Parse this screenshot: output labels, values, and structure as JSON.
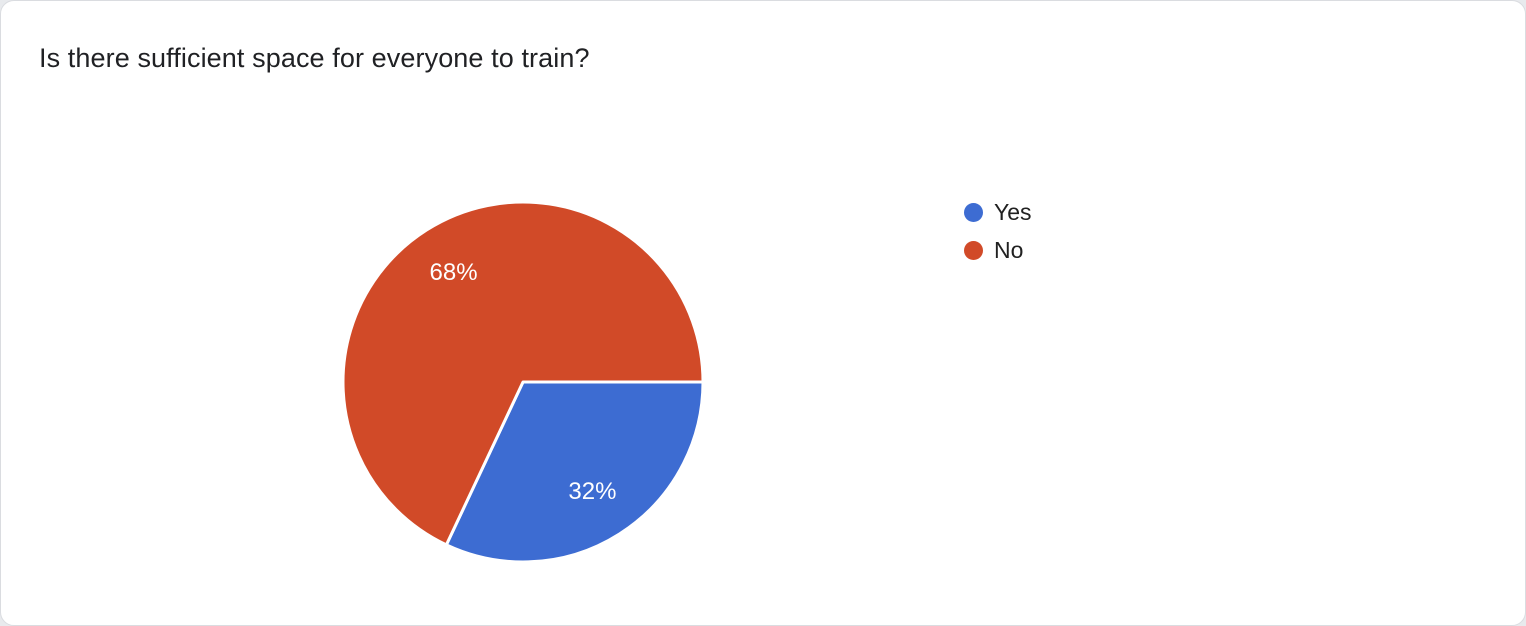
{
  "page": {
    "title": "Is there sufficient space for everyone to train?"
  },
  "chart_data": {
    "type": "pie",
    "title": "Is there sufficient space for everyone to train?",
    "legend_position": "right",
    "start_angle_deg": 0,
    "direction": "clockwise",
    "label_color": "#ffffff",
    "separator_color": "#ffffff",
    "series": [
      {
        "label": "Yes",
        "value": 32,
        "pct_label": "32%",
        "color": "#3d6cd2"
      },
      {
        "label": "No",
        "value": 68,
        "pct_label": "68%",
        "color": "#d14a28"
      }
    ]
  }
}
